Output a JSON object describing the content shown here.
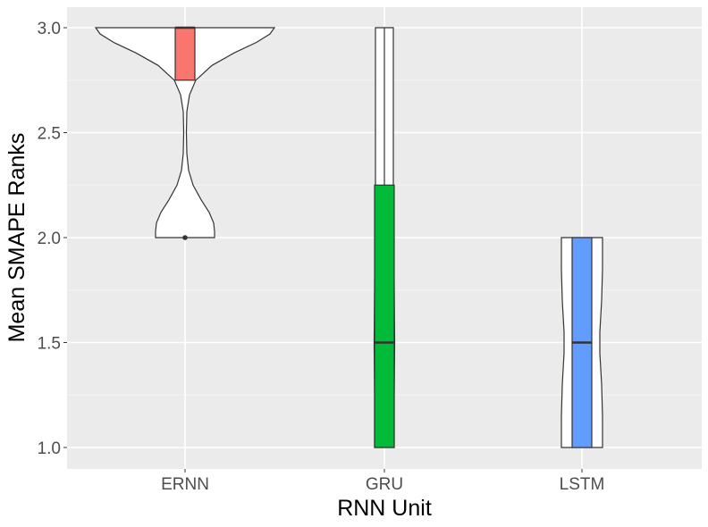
{
  "chart_data": {
    "type": "violin",
    "xlabel": "RNN Unit",
    "ylabel": "Mean SMAPE Ranks",
    "ylim": [
      0.9,
      3.05
    ],
    "yticks": [
      1.0,
      1.5,
      2.0,
      2.5,
      3.0
    ],
    "ytick_labels": [
      "1.0",
      "1.5",
      "2.0",
      "2.5",
      "3.0"
    ],
    "categories": [
      "ERNN",
      "GRU",
      "LSTM"
    ],
    "grid": true,
    "legend": "none",
    "series": [
      {
        "category": "ERNN",
        "color": "#F8766D",
        "box": {
          "q1": 2.75,
          "median": 3.0,
          "q3": 3.0,
          "whisker_low": 2.75,
          "whisker_high": 3.0
        },
        "outliers": [
          2.0
        ],
        "density": [
          [
            2.0,
            0.33
          ],
          [
            2.03,
            0.33
          ],
          [
            2.07,
            0.32
          ],
          [
            2.12,
            0.27
          ],
          [
            2.18,
            0.18
          ],
          [
            2.25,
            0.09
          ],
          [
            2.32,
            0.04
          ],
          [
            2.4,
            0.02
          ],
          [
            2.5,
            0.015
          ],
          [
            2.6,
            0.02
          ],
          [
            2.68,
            0.05
          ],
          [
            2.75,
            0.12
          ],
          [
            2.82,
            0.3
          ],
          [
            2.88,
            0.55
          ],
          [
            2.93,
            0.8
          ],
          [
            2.97,
            0.95
          ],
          [
            3.0,
            1.0
          ]
        ]
      },
      {
        "category": "GRU",
        "color": "#00BA38",
        "box": {
          "q1": 1.0,
          "median": 1.5,
          "q3": 2.25,
          "whisker_low": 1.0,
          "whisker_high": 3.0
        },
        "outliers": [],
        "density": [
          [
            1.0,
            0.11
          ],
          [
            1.25,
            0.11
          ],
          [
            1.5,
            0.115
          ],
          [
            1.75,
            0.11
          ],
          [
            2.0,
            0.105
          ],
          [
            2.25,
            0.1
          ],
          [
            2.5,
            0.1
          ],
          [
            2.75,
            0.1
          ],
          [
            3.0,
            0.1
          ]
        ]
      },
      {
        "category": "LSTM",
        "color": "#619CFF",
        "box": {
          "q1": 1.0,
          "median": 1.5,
          "q3": 2.0,
          "whisker_low": 1.0,
          "whisker_high": 2.0
        },
        "outliers": [],
        "density": [
          [
            1.0,
            0.23
          ],
          [
            1.15,
            0.23
          ],
          [
            1.3,
            0.22
          ],
          [
            1.45,
            0.2
          ],
          [
            1.55,
            0.2
          ],
          [
            1.7,
            0.22
          ],
          [
            1.85,
            0.23
          ],
          [
            2.0,
            0.23
          ]
        ]
      }
    ]
  }
}
